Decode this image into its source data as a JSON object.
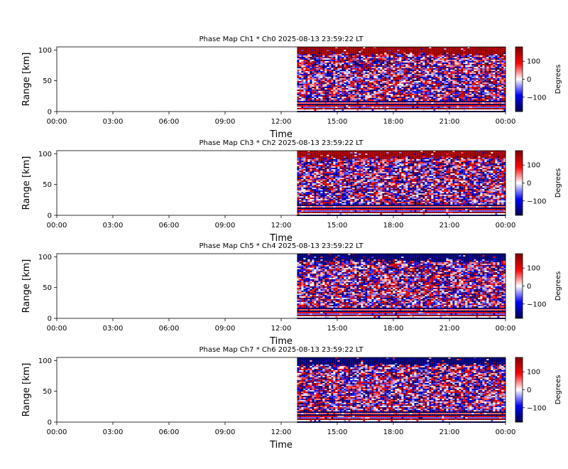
{
  "figure": {
    "background": "#ffffff"
  },
  "chart_data": [
    {
      "type": "heatmap",
      "title": "Phase Map Ch1 * Ch0 2025-08-13 23:59:22 LT",
      "xlabel": "Time",
      "ylabel": "Range [km]",
      "x_ticks": [
        "00:00",
        "03:00",
        "06:00",
        "09:00",
        "12:00",
        "15:00",
        "18:00",
        "21:00",
        "00:00"
      ],
      "x_range_hours": [
        0,
        24
      ],
      "y_ticks": [
        0,
        50,
        100
      ],
      "ylim": [
        0,
        105
      ],
      "data_start_hour": 12.85,
      "noise_band_km": [
        18,
        100
      ],
      "top_band_km": [
        92,
        105
      ],
      "top_band_phase": 160,
      "lower_band_km": [
        0,
        18
      ],
      "colorbar": {
        "label": "Degrees",
        "ticks": [
          100,
          0,
          -100
        ],
        "range": [
          -180,
          180
        ]
      }
    },
    {
      "type": "heatmap",
      "title": "Phase Map Ch3 * Ch2 2025-08-13 23:59:22 LT",
      "xlabel": "Time",
      "ylabel": "Range [km]",
      "x_ticks": [
        "00:00",
        "03:00",
        "06:00",
        "09:00",
        "12:00",
        "15:00",
        "18:00",
        "21:00",
        "00:00"
      ],
      "x_range_hours": [
        0,
        24
      ],
      "y_ticks": [
        0,
        50,
        100
      ],
      "ylim": [
        0,
        105
      ],
      "data_start_hour": 12.85,
      "noise_band_km": [
        18,
        100
      ],
      "top_band_km": [
        92,
        105
      ],
      "top_band_phase": 160,
      "lower_band_km": [
        0,
        18
      ],
      "colorbar": {
        "label": "Degrees",
        "ticks": [
          100,
          0,
          -100
        ],
        "range": [
          -180,
          180
        ]
      }
    },
    {
      "type": "heatmap",
      "title": "Phase Map Ch5 * Ch4 2025-08-13 23:59:22 LT",
      "xlabel": "Time",
      "ylabel": "Range [km]",
      "x_ticks": [
        "00:00",
        "03:00",
        "06:00",
        "09:00",
        "12:00",
        "15:00",
        "18:00",
        "21:00",
        "00:00"
      ],
      "x_range_hours": [
        0,
        24
      ],
      "y_ticks": [
        0,
        50,
        100
      ],
      "ylim": [
        0,
        105
      ],
      "data_start_hour": 12.85,
      "noise_band_km": [
        18,
        100
      ],
      "top_band_km": [
        92,
        105
      ],
      "top_band_phase": -160,
      "lower_band_km": [
        0,
        18
      ],
      "colorbar": {
        "label": "Degrees",
        "ticks": [
          100,
          0,
          -100
        ],
        "range": [
          -180,
          180
        ]
      }
    },
    {
      "type": "heatmap",
      "title": "Phase Map Ch7 * Ch6 2025-08-13 23:59:22 LT",
      "xlabel": "Time",
      "ylabel": "Range [km]",
      "x_ticks": [
        "00:00",
        "03:00",
        "06:00",
        "09:00",
        "12:00",
        "15:00",
        "18:00",
        "21:00",
        "00:00"
      ],
      "x_range_hours": [
        0,
        24
      ],
      "y_ticks": [
        0,
        50,
        100
      ],
      "ylim": [
        0,
        105
      ],
      "data_start_hour": 12.85,
      "noise_band_km": [
        18,
        100
      ],
      "top_band_km": [
        92,
        105
      ],
      "top_band_phase": -160,
      "lower_band_km": [
        0,
        18
      ],
      "colorbar": {
        "label": "Degrees",
        "ticks": [
          100,
          0,
          -100
        ],
        "range": [
          -180,
          180
        ]
      }
    }
  ]
}
